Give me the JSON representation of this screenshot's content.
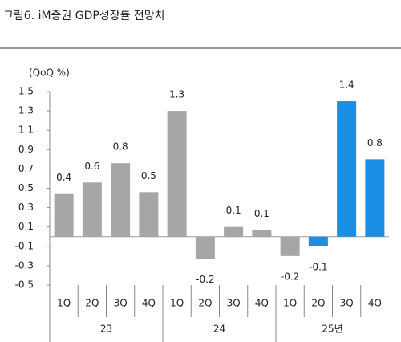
{
  "chart_data": {
    "type": "bar",
    "title": "그림6.  iM증권 GDP성장률 전망치",
    "y_label": "(QoQ %)",
    "categories": [
      "1Q",
      "2Q",
      "3Q",
      "4Q",
      "1Q",
      "2Q",
      "3Q",
      "4Q",
      "1Q",
      "2Q",
      "3Q",
      "4Q"
    ],
    "groups": [
      "23",
      "24",
      "25년"
    ],
    "values": [
      0.44,
      0.56,
      0.76,
      0.46,
      1.3,
      -0.23,
      0.1,
      0.07,
      -0.2,
      -0.1,
      1.4,
      0.8
    ],
    "value_labels": [
      "0.4",
      "0.6",
      "0.8",
      "0.5",
      "1.3",
      "-0.2",
      "0.1",
      "0.1",
      "-0.2",
      "-0.1",
      "1.4",
      "0.8"
    ],
    "colors": [
      "#a6a6a6",
      "#a6a6a6",
      "#a6a6a6",
      "#a6a6a6",
      "#a6a6a6",
      "#a6a6a6",
      "#a6a6a6",
      "#a6a6a6",
      "#a6a6a6",
      "#1a8fe3",
      "#1a8fe3",
      "#1a8fe3"
    ],
    "ylim": [
      -0.5,
      1.5
    ],
    "yticks": [
      -0.5,
      -0.3,
      -0.1,
      0.1,
      0.3,
      0.5,
      0.7,
      0.9,
      1.1,
      1.3,
      1.5
    ]
  }
}
